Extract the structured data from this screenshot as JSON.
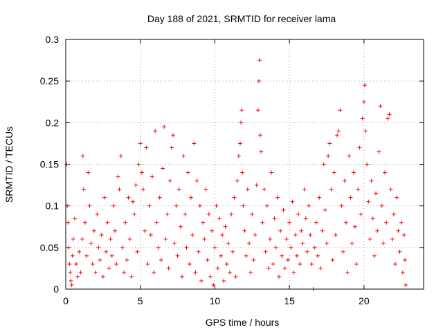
{
  "chart_data": {
    "type": "scatter",
    "title": "Day 188 of 2021, SRMTID for receiver lama",
    "xlabel": "GPS time / hours",
    "ylabel": "SRMTID / TECUs",
    "xlim": [
      0,
      24
    ],
    "ylim": [
      0,
      0.3
    ],
    "x_ticks": [
      0,
      5,
      10,
      15,
      20
    ],
    "x_tick_labels": [
      "0",
      "5",
      "10",
      "15",
      "20"
    ],
    "y_ticks": [
      0,
      0.05,
      0.1,
      0.15,
      0.2,
      0.25,
      0.3
    ],
    "y_tick_labels": [
      "0",
      "0.05",
      "0.1",
      "0.15",
      "0.2",
      "0.25",
      "0.3"
    ],
    "grid": true,
    "marker": "plus",
    "series_color": "#ff0000",
    "series": [
      {
        "name": "SRMTID",
        "points": [
          [
            0.05,
            0.15
          ],
          [
            0.1,
            0.1
          ],
          [
            0.15,
            0.08
          ],
          [
            0.2,
            0.05
          ],
          [
            0.25,
            0.03
          ],
          [
            0.3,
            0.02
          ],
          [
            0.35,
            0.01
          ],
          [
            0.4,
            0.005
          ],
          [
            0.45,
            0.04
          ],
          [
            0.5,
            0.06
          ],
          [
            0.6,
            0.085
          ],
          [
            0.7,
            0.03
          ],
          [
            0.8,
            0.015
          ],
          [
            0.9,
            0.045
          ],
          [
            1.0,
            0.02
          ],
          [
            1.1,
            0.06
          ],
          [
            1.15,
            0.16
          ],
          [
            1.2,
            0.12
          ],
          [
            1.3,
            0.08
          ],
          [
            1.4,
            0.04
          ],
          [
            1.5,
            0.14
          ],
          [
            1.6,
            0.1
          ],
          [
            1.7,
            0.055
          ],
          [
            1.8,
            0.03
          ],
          [
            1.9,
            0.07
          ],
          [
            2.0,
            0.02
          ],
          [
            2.1,
            0.09
          ],
          [
            2.2,
            0.05
          ],
          [
            2.3,
            0.035
          ],
          [
            2.4,
            0.065
          ],
          [
            2.5,
            0.015
          ],
          [
            2.6,
            0.11
          ],
          [
            2.7,
            0.045
          ],
          [
            2.8,
            0.08
          ],
          [
            2.9,
            0.025
          ],
          [
            3.0,
            0.06
          ],
          [
            3.1,
            0.04
          ],
          [
            3.2,
            0.1
          ],
          [
            3.3,
            0.07
          ],
          [
            3.4,
            0.03
          ],
          [
            3.5,
            0.135
          ],
          [
            3.6,
            0.12
          ],
          [
            3.7,
            0.16
          ],
          [
            3.8,
            0.05
          ],
          [
            3.9,
            0.02
          ],
          [
            4.0,
            0.08
          ],
          [
            4.1,
            0.035
          ],
          [
            4.2,
            0.11
          ],
          [
            4.3,
            0.06
          ],
          [
            4.4,
            0.015
          ],
          [
            4.5,
            0.105
          ],
          [
            4.6,
            0.09
          ],
          [
            4.7,
            0.125
          ],
          [
            4.8,
            0.045
          ],
          [
            4.9,
            0.15
          ],
          [
            5.0,
            0.175
          ],
          [
            5.1,
            0.14
          ],
          [
            5.2,
            0.12
          ],
          [
            5.3,
            0.07
          ],
          [
            5.4,
            0.17
          ],
          [
            5.5,
            0.03
          ],
          [
            5.6,
            0.1
          ],
          [
            5.7,
            0.065
          ],
          [
            5.8,
            0.135
          ],
          [
            5.9,
            0.02
          ],
          [
            6.0,
            0.19
          ],
          [
            6.1,
            0.08
          ],
          [
            6.2,
            0.05
          ],
          [
            6.3,
            0.11
          ],
          [
            6.4,
            0.035
          ],
          [
            6.5,
            0.145
          ],
          [
            6.6,
            0.195
          ],
          [
            6.7,
            0.06
          ],
          [
            6.8,
            0.09
          ],
          [
            6.9,
            0.025
          ],
          [
            7.0,
            0.13
          ],
          [
            7.1,
            0.17
          ],
          [
            7.2,
            0.185
          ],
          [
            7.3,
            0.055
          ],
          [
            7.4,
            0.1
          ],
          [
            7.5,
            0.04
          ],
          [
            7.6,
            0.12
          ],
          [
            7.7,
            0.075
          ],
          [
            7.8,
            0.015
          ],
          [
            7.9,
            0.16
          ],
          [
            8.0,
            0.09
          ],
          [
            8.1,
            0.05
          ],
          [
            8.2,
            0.14
          ],
          [
            8.3,
            0.03
          ],
          [
            8.4,
            0.11
          ],
          [
            8.5,
            0.065
          ],
          [
            8.6,
            0.175
          ],
          [
            8.7,
            0.02
          ],
          [
            8.8,
            0.13
          ],
          [
            8.9,
            0.045
          ],
          [
            9.0,
            0.1
          ],
          [
            9.1,
            0.01
          ],
          [
            9.2,
            0.08
          ],
          [
            9.3,
            0.06
          ],
          [
            9.4,
            0.12
          ],
          [
            9.5,
            0.035
          ],
          [
            9.6,
            0.09
          ],
          [
            9.7,
            0.015
          ],
          [
            9.8,
            0.07
          ],
          [
            9.9,
            0.005
          ],
          [
            10.0,
            0.05
          ],
          [
            10.1,
            0.1
          ],
          [
            10.2,
            0.025
          ],
          [
            10.3,
            0.085
          ],
          [
            10.4,
            0.04
          ],
          [
            10.5,
            0.065
          ],
          [
            10.6,
            0.01
          ],
          [
            10.7,
            0.075
          ],
          [
            10.8,
            0.03
          ],
          [
            10.9,
            0.055
          ],
          [
            11.0,
            0.02
          ],
          [
            11.1,
            0.09
          ],
          [
            11.2,
            0.045
          ],
          [
            11.3,
            0.11
          ],
          [
            11.4,
            0.015
          ],
          [
            11.5,
            0.13
          ],
          [
            11.6,
            0.16
          ],
          [
            11.7,
            0.175
          ],
          [
            11.75,
            0.2
          ],
          [
            11.8,
            0.215
          ],
          [
            11.85,
            0.14
          ],
          [
            11.9,
            0.1
          ],
          [
            12.0,
            0.07
          ],
          [
            12.1,
            0.04
          ],
          [
            12.2,
            0.12
          ],
          [
            12.3,
            0.055
          ],
          [
            12.4,
            0.02
          ],
          [
            12.5,
            0.09
          ],
          [
            12.6,
            0.035
          ],
          [
            12.7,
            0.065
          ],
          [
            12.8,
            0.125
          ],
          [
            12.9,
            0.215
          ],
          [
            12.95,
            0.25
          ],
          [
            13.0,
            0.275
          ],
          [
            13.05,
            0.185
          ],
          [
            13.1,
            0.165
          ],
          [
            13.2,
            0.08
          ],
          [
            13.3,
            0.12
          ],
          [
            13.4,
            0.045
          ],
          [
            13.5,
            0.1
          ],
          [
            13.6,
            0.025
          ],
          [
            13.7,
            0.06
          ],
          [
            13.8,
            0.14
          ],
          [
            13.9,
            0.03
          ],
          [
            14.0,
            0.085
          ],
          [
            14.1,
            0.05
          ],
          [
            14.2,
            0.11
          ],
          [
            14.3,
            0.015
          ],
          [
            14.4,
            0.07
          ],
          [
            14.5,
            0.04
          ],
          [
            14.6,
            0.095
          ],
          [
            14.7,
            0.025
          ],
          [
            14.8,
            0.06
          ],
          [
            14.9,
            0.035
          ],
          [
            15.0,
            0.08
          ],
          [
            15.1,
            0.05
          ],
          [
            15.2,
            0.105
          ],
          [
            15.3,
            0.02
          ],
          [
            15.4,
            0.065
          ],
          [
            15.5,
            0.04
          ],
          [
            15.6,
            0.09
          ],
          [
            15.7,
            0.03
          ],
          [
            15.8,
            0.07
          ],
          [
            15.9,
            0.055
          ],
          [
            16.0,
            0.12
          ],
          [
            16.1,
            0.085
          ],
          [
            16.2,
            0.045
          ],
          [
            16.3,
            0.1
          ],
          [
            16.4,
            0.065
          ],
          [
            16.5,
            0.03
          ],
          [
            16.6,
            0.0
          ],
          [
            16.7,
            0.05
          ],
          [
            16.8,
            0.08
          ],
          [
            16.9,
            0.04
          ],
          [
            17.0,
            0.11
          ],
          [
            17.1,
            0.025
          ],
          [
            17.2,
            0.07
          ],
          [
            17.3,
            0.15
          ],
          [
            17.4,
            0.095
          ],
          [
            17.5,
            0.055
          ],
          [
            17.6,
            0.16
          ],
          [
            17.7,
            0.175
          ],
          [
            17.8,
            0.12
          ],
          [
            17.9,
            0.035
          ],
          [
            18.0,
            0.14
          ],
          [
            18.1,
            0.065
          ],
          [
            18.2,
            0.185
          ],
          [
            18.3,
            0.19
          ],
          [
            18.4,
            0.215
          ],
          [
            18.5,
            0.1
          ],
          [
            18.6,
            0.045
          ],
          [
            18.7,
            0.13
          ],
          [
            18.8,
            0.08
          ],
          [
            18.9,
            0.02
          ],
          [
            19.0,
            0.16
          ],
          [
            19.1,
            0.11
          ],
          [
            19.2,
            0.055
          ],
          [
            19.3,
            0.14
          ],
          [
            19.4,
            0.075
          ],
          [
            19.5,
            0.03
          ],
          [
            19.6,
            0.12
          ],
          [
            19.7,
            0.17
          ],
          [
            19.8,
            0.09
          ],
          [
            19.9,
            0.205
          ],
          [
            20.0,
            0.225
          ],
          [
            20.05,
            0.245
          ],
          [
            20.1,
            0.19
          ],
          [
            20.2,
            0.15
          ],
          [
            20.3,
            0.105
          ],
          [
            20.4,
            0.06
          ],
          [
            20.5,
            0.13
          ],
          [
            20.6,
            0.085
          ],
          [
            20.7,
            0.04
          ],
          [
            20.8,
            0.115
          ],
          [
            20.9,
            0.07
          ],
          [
            21.0,
            0.165
          ],
          [
            21.1,
            0.22
          ],
          [
            21.2,
            0.1
          ],
          [
            21.3,
            0.055
          ],
          [
            21.4,
            0.14
          ],
          [
            21.5,
            0.08
          ],
          [
            21.6,
            0.205
          ],
          [
            21.7,
            0.21
          ],
          [
            21.8,
            0.12
          ],
          [
            21.9,
            0.06
          ],
          [
            22.0,
            0.09
          ],
          [
            22.1,
            0.03
          ],
          [
            22.2,
            0.11
          ],
          [
            22.3,
            0.07
          ],
          [
            22.4,
            0.045
          ],
          [
            22.5,
            0.08
          ],
          [
            22.6,
            0.02
          ],
          [
            22.7,
            0.065
          ],
          [
            22.75,
            0.035
          ],
          [
            22.8,
            0.005
          ]
        ]
      }
    ]
  }
}
